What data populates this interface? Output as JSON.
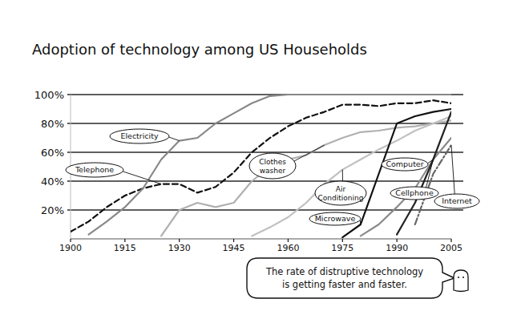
{
  "chart_data": {
    "type": "line",
    "title": "Adoption of technology among US Households",
    "annotation": [
      "The rate of distruptive technology",
      "is getting faster and faster."
    ],
    "x": [
      1900,
      1905,
      1910,
      1915,
      1920,
      1925,
      1930,
      1935,
      1940,
      1945,
      1950,
      1955,
      1960,
      1965,
      1970,
      1975,
      1980,
      1985,
      1990,
      1995,
      2000,
      2005
    ],
    "xlim": [
      1900,
      2005
    ],
    "xticks": [
      1900,
      1915,
      1930,
      1945,
      1960,
      1975,
      1990,
      2005
    ],
    "ylim": [
      0,
      100
    ],
    "yticks": [
      {
        "value": 20,
        "label": "20%"
      },
      {
        "value": 40,
        "label": "40%"
      },
      {
        "value": 60,
        "label": "60%"
      },
      {
        "value": 80,
        "label": "80%"
      },
      {
        "value": 100,
        "label": "100%"
      }
    ],
    "grid": true,
    "series": [
      {
        "name": "Telephone",
        "color": "#111111",
        "line_style": "dashed",
        "values": [
          5,
          12,
          22,
          30,
          35,
          38,
          38,
          32,
          36,
          46,
          60,
          70,
          78,
          84,
          88,
          93,
          93,
          92,
          94,
          94,
          96,
          94
        ]
      },
      {
        "name": "Electricity",
        "color": "#888888",
        "line_style": "solid",
        "values": [
          null,
          3,
          12,
          22,
          35,
          55,
          68,
          70,
          80,
          87,
          94,
          99,
          100,
          100,
          100,
          100,
          100,
          100,
          100,
          100,
          100,
          100
        ]
      },
      {
        "name": "Clothes washer",
        "color": "#b0b0b0",
        "line_style": "solid",
        "values": [
          null,
          null,
          null,
          null,
          null,
          2,
          20,
          25,
          22,
          25,
          40,
          50,
          55,
          58,
          65,
          70,
          74,
          75,
          77,
          78,
          80,
          82
        ]
      },
      {
        "name": "Air Conditioning",
        "color": "#c0c0c0",
        "line_style": "solid",
        "values": [
          null,
          null,
          null,
          null,
          null,
          null,
          null,
          null,
          null,
          null,
          2,
          8,
          15,
          25,
          38,
          48,
          55,
          62,
          68,
          75,
          80,
          85
        ]
      },
      {
        "name": "Microwave",
        "color": "#111111",
        "line_style": "solid",
        "values": [
          null,
          null,
          null,
          null,
          null,
          null,
          null,
          null,
          null,
          null,
          null,
          null,
          null,
          null,
          null,
          1,
          10,
          45,
          80,
          85,
          88,
          90
        ]
      },
      {
        "name": "Computer",
        "color": "#8a8a8a",
        "line_style": "solid",
        "values": [
          null,
          null,
          null,
          null,
          null,
          null,
          null,
          null,
          null,
          null,
          null,
          null,
          null,
          null,
          null,
          null,
          2,
          10,
          22,
          35,
          55,
          70
        ]
      },
      {
        "name": "Cellphone",
        "color": "#222222",
        "line_style": "solid",
        "values": [
          null,
          null,
          null,
          null,
          null,
          null,
          null,
          null,
          null,
          null,
          null,
          null,
          null,
          null,
          null,
          null,
          null,
          null,
          3,
          25,
          55,
          88
        ]
      },
      {
        "name": "Internet",
        "color": "#666666",
        "line_style": "dashdot",
        "values": [
          null,
          null,
          null,
          null,
          null,
          null,
          null,
          null,
          null,
          null,
          null,
          null,
          null,
          null,
          null,
          null,
          null,
          null,
          null,
          10,
          45,
          65
        ]
      }
    ]
  }
}
